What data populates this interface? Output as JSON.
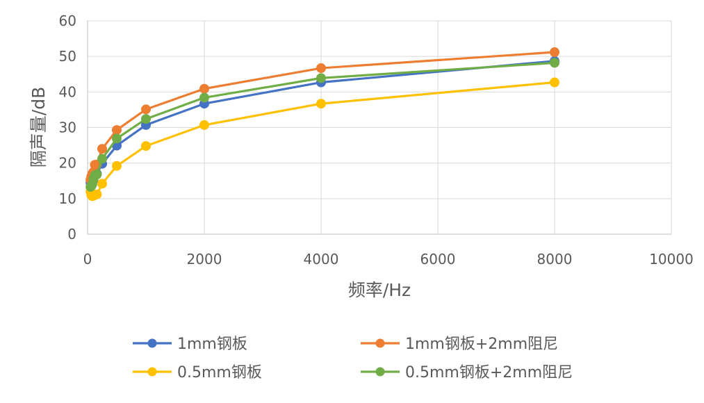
{
  "chart_data": {
    "type": "scatter",
    "xlabel": "频率/Hz",
    "ylabel": "隔声量/dB",
    "xlim": [
      0,
      10000
    ],
    "ylim": [
      0,
      60
    ],
    "xticks": [
      0,
      2000,
      4000,
      6000,
      8000,
      10000
    ],
    "yticks": [
      0,
      10,
      20,
      30,
      40,
      50,
      60
    ],
    "grid": true,
    "legend_position": "bottom",
    "series": [
      {
        "name": "1mm钢板",
        "color": "#4472C4",
        "x": [
          50,
          63,
          80,
          100,
          125,
          160,
          250,
          500,
          1000,
          2000,
          4000,
          8000
        ],
        "y": [
          14.5,
          14.0,
          14.2,
          15.2,
          16.4,
          17.0,
          19.8,
          24.9,
          30.7,
          36.7,
          42.7,
          48.7
        ]
      },
      {
        "name": "1mm钢板+2mm阻尼",
        "color": "#ED7D31",
        "x": [
          50,
          63,
          80,
          100,
          125,
          160,
          250,
          500,
          1000,
          2000,
          4000,
          8000
        ],
        "y": [
          15.3,
          16.2,
          17.0,
          17.5,
          19.5,
          19.6,
          24.0,
          29.3,
          35.1,
          40.9,
          46.7,
          51.2
        ]
      },
      {
        "name": "0.5mm钢板",
        "color": "#FFC000",
        "x": [
          50,
          63,
          80,
          100,
          125,
          160,
          250,
          500,
          1000,
          2000,
          4000,
          8000
        ],
        "y": [
          12.0,
          11.0,
          10.7,
          10.8,
          11.0,
          11.2,
          14.2,
          19.2,
          24.8,
          30.7,
          36.7,
          42.7
        ]
      },
      {
        "name": "0.5mm钢板+2mm阻尼",
        "color": "#70AD47",
        "x": [
          50,
          63,
          80,
          100,
          125,
          160,
          250,
          500,
          1000,
          2000,
          4000,
          8000
        ],
        "y": [
          13.3,
          13.5,
          14.0,
          15.5,
          16.6,
          16.8,
          21.2,
          26.9,
          32.4,
          38.4,
          43.9,
          48.2
        ]
      }
    ]
  }
}
